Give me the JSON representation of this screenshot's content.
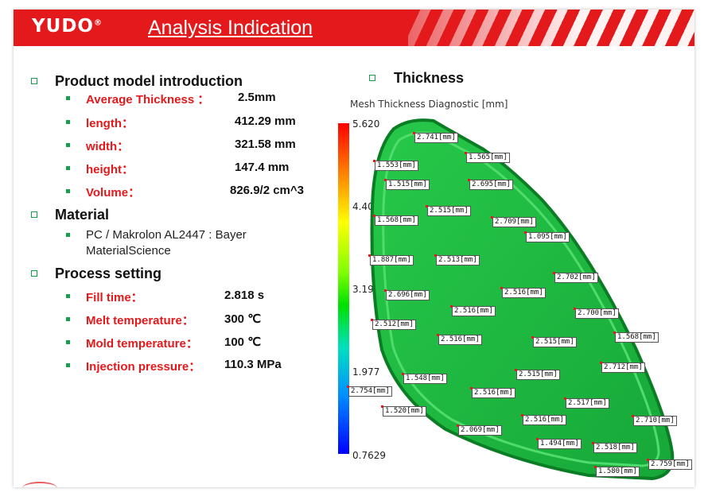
{
  "header": {
    "logo": "YUDO",
    "logo_mark": "®",
    "title": "Analysis  Indication"
  },
  "product": {
    "heading": "Product model introduction",
    "items": [
      {
        "label": "Average Thickness ：",
        "value": "2.5mm"
      },
      {
        "label": "length：",
        "value": "412.29 mm"
      },
      {
        "label": "width：",
        "value": "321.58 mm"
      },
      {
        "label": "height：",
        "value": "147.4 mm"
      },
      {
        "label": "Volume：",
        "value": "826.9/2 cm^3"
      }
    ]
  },
  "material": {
    "heading": "Material",
    "text_line1": "PC / Makrolon AL2447 : Bayer",
    "text_line2": "MaterialScience"
  },
  "process": {
    "heading": "Process setting",
    "items": [
      {
        "label": "Fill time：",
        "value": "2.818 s"
      },
      {
        "label": "Melt temperature：",
        "value": "300 ℃"
      },
      {
        "label": "Mold temperature：",
        "value": "100 ℃"
      },
      {
        "label": "Injection pressure：",
        "value": "110.3 MPa"
      }
    ]
  },
  "thickness": {
    "heading": "Thickness",
    "diagnostic_title": "Mesh Thickness Diagnostic [mm]",
    "scale": [
      "5.620",
      "4.406",
      "3.191",
      "1.977",
      "0.7629"
    ],
    "colors": {
      "part": "#1fbf3c",
      "rim": "#0e8f2a"
    },
    "labels": [
      "2.741[mm]",
      "1.565[mm]",
      "1.553[mm]",
      "2.695[mm]",
      "1.515[mm]",
      "2.515[mm]",
      "1.568[mm]",
      "2.709[mm]",
      "1.095[mm]",
      "1.887[mm]",
      "2.513[mm]",
      "2.702[mm]",
      "2.516[mm]",
      "2.696[mm]",
      "2.516[mm]",
      "2.700[mm]",
      "2.512[mm]",
      "2.516[mm]",
      "2.515[mm]",
      "1.568[mm]",
      "2.712[mm]",
      "2.515[mm]",
      "1.548[mm]",
      "2.754[mm]",
      "2.516[mm]",
      "2.517[mm]",
      "1.520[mm]",
      "2.516[mm]",
      "2.710[mm]",
      "2.069[mm]",
      "1.494[mm]",
      "2.518[mm]",
      "2.759[mm]",
      "1.580[mm]"
    ]
  }
}
